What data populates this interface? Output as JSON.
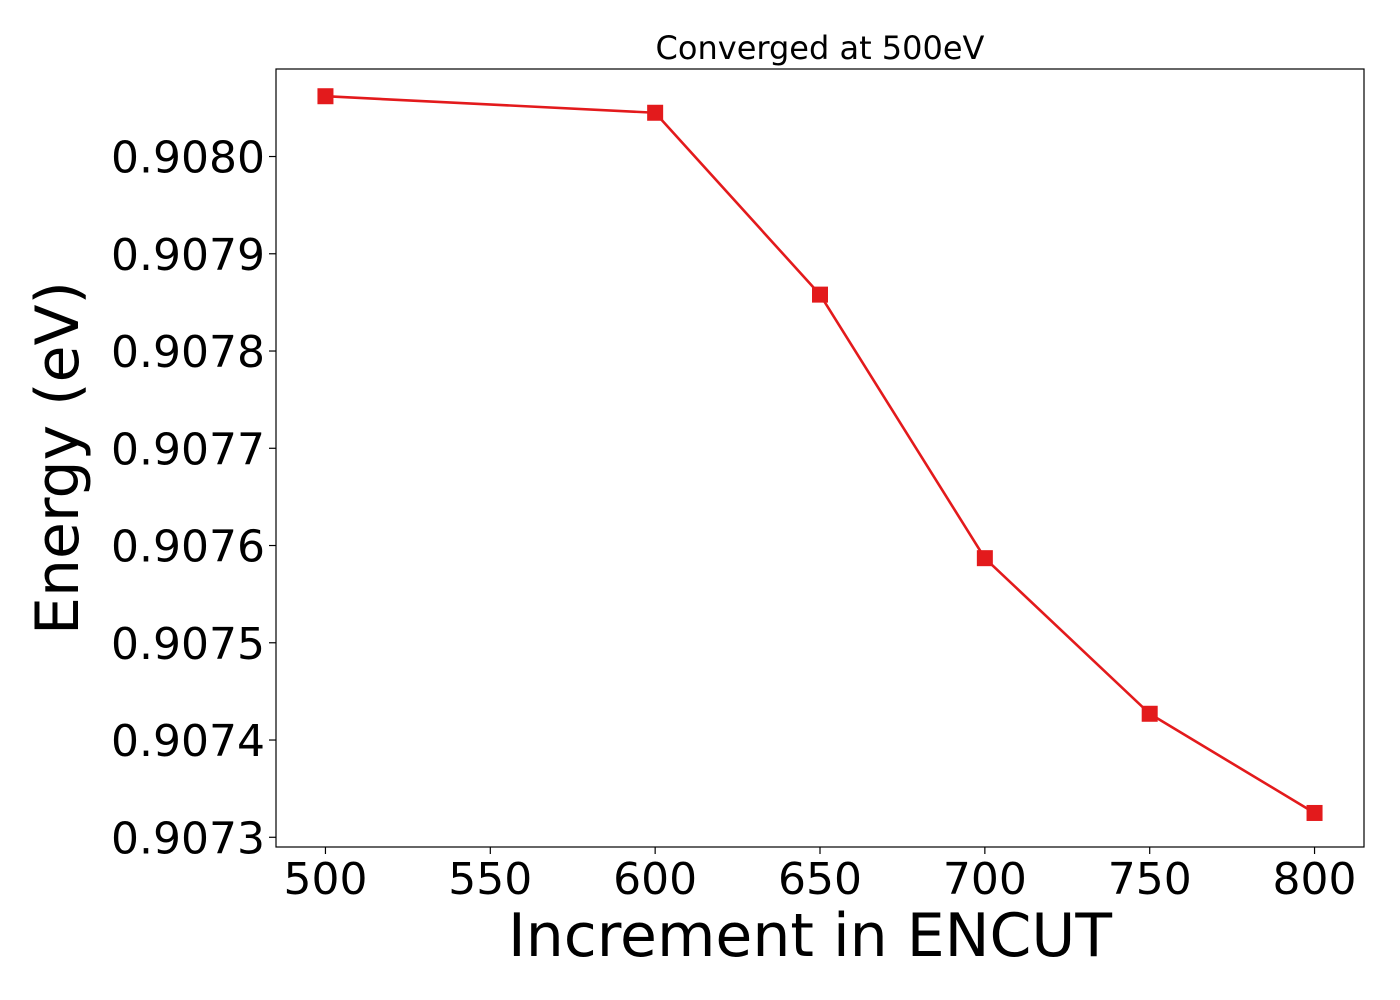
{
  "chart_data": {
    "type": "line",
    "title": "Converged at 500eV",
    "xlabel": "Increment in ENCUT",
    "ylabel": "Energy (eV)",
    "x": [
      500,
      600,
      650,
      700,
      750,
      800
    ],
    "xlim": [
      485,
      815
    ],
    "ylim": [
      0.90729,
      0.90809
    ],
    "xticks": [
      500,
      550,
      600,
      650,
      700,
      750,
      800
    ],
    "xtick_labels": [
      "500",
      "550",
      "600",
      "650",
      "700",
      "750",
      "800"
    ],
    "yticks": [
      0.9073,
      0.9074,
      0.9075,
      0.9076,
      0.9077,
      0.9078,
      0.9079,
      0.908
    ],
    "ytick_labels": [
      "0.9073",
      "0.9074",
      "0.9075",
      "0.9076",
      "0.9077",
      "0.9078",
      "0.9079",
      "0.9080"
    ],
    "grid": false,
    "series": [
      {
        "color": "#e31a1c",
        "marker": "square",
        "values": [
          0.908062,
          0.908045,
          0.907858,
          0.907587,
          0.907427,
          0.907325
        ]
      }
    ]
  }
}
